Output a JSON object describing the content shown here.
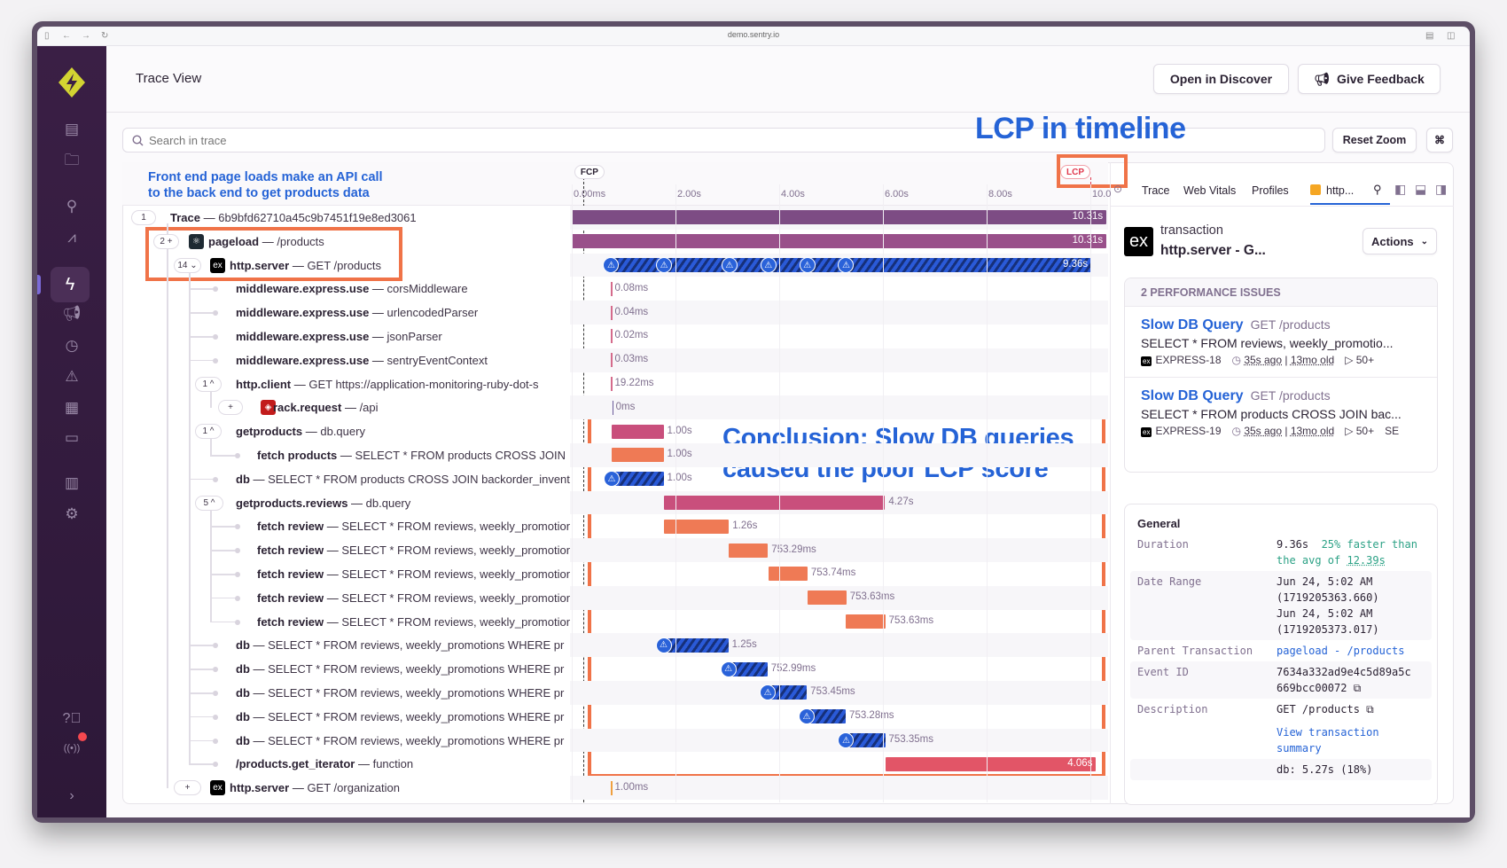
{
  "browser": {
    "url": "demo.sentry.io"
  },
  "sidebar": {
    "logo": "sentry-logo-icon",
    "items": [
      "issues-icon",
      "projects-icon",
      "explore-icon",
      "performance-chart-icon",
      "traces-icon",
      "feedback-icon",
      "releases-icon",
      "alerts-icon",
      "dashboards-icon",
      "crons-icon",
      "stats-icon",
      "settings-icon"
    ],
    "active_item": "traces-icon",
    "bottom": [
      "help-icon",
      "broadcast-icon",
      "collapse-icon"
    ]
  },
  "header": {
    "title": "Trace View",
    "open_discover": "Open in Discover",
    "give_feedback": "Give Feedback"
  },
  "search": {
    "placeholder": "Search in trace",
    "reset_zoom": "Reset Zoom",
    "shortcut": "⌘"
  },
  "annotations": {
    "lcp_title": "LCP in timeline",
    "tree_note_line1": "Front end page loads make an API call",
    "tree_note_line2": "to the back end to get products data",
    "conclusion_line1": "Conclusion: Slow DB queries",
    "conclusion_line2": "caused the poor LCP score",
    "highlight_color": "#f07348"
  },
  "timeline": {
    "fcp": {
      "label": "FCP",
      "time_s": 0.22
    },
    "lcp": {
      "label": "LCP",
      "time_s": 10.0
    },
    "ticks": [
      {
        "label": "0.00ms",
        "t": 0
      },
      {
        "label": "2.00s",
        "t": 2
      },
      {
        "label": "4.00s",
        "t": 4
      },
      {
        "label": "6.00s",
        "t": 6
      },
      {
        "label": "8.00s",
        "t": 8
      },
      {
        "label": "10.0",
        "t": 10
      }
    ],
    "issue_markers_s": [
      0.76,
      1.78,
      3.04,
      3.79,
      4.54,
      5.29
    ]
  },
  "rows": [
    {
      "count": "1",
      "name": "Trace",
      "desc": "6b9bfd62710a45c9b7451f19e8ed3061",
      "start": 0,
      "dur": 10.31,
      "label": "10.31s",
      "color": "#7d4c84",
      "style": "solid"
    },
    {
      "count": "2 +",
      "icon": "react",
      "name": "pageload",
      "desc": "/products",
      "start": 0,
      "dur": 10.31,
      "label": "10.31s",
      "color": "#99508a",
      "style": "solid"
    },
    {
      "count": "14 ⌄",
      "icon": "express",
      "name": "http.server",
      "desc": "GET /products",
      "start": 0.66,
      "dur": 9.36,
      "label": "9.36s",
      "style": "hatch",
      "markers": true
    },
    {
      "name": "middleware.express.use",
      "desc": "corsMiddleware",
      "start": 0.76,
      "dur": 0,
      "label": "0.08ms",
      "color": "#d56b8c",
      "style": "line"
    },
    {
      "name": "middleware.express.use",
      "desc": "urlencodedParser",
      "start": 0.76,
      "dur": 0,
      "label": "0.04ms",
      "color": "#d56b8c",
      "style": "line"
    },
    {
      "name": "middleware.express.use",
      "desc": "jsonParser",
      "start": 0.76,
      "dur": 0,
      "label": "0.02ms",
      "color": "#d56b8c",
      "style": "line"
    },
    {
      "name": "middleware.express.use",
      "desc": "sentryEventContext",
      "start": 0.76,
      "dur": 0,
      "label": "0.03ms",
      "color": "#d56b8c",
      "style": "line"
    },
    {
      "count": "1 ^",
      "name": "http.client",
      "desc": "GET https://application-monitoring-ruby-dot-s",
      "start": 0.76,
      "dur": 0,
      "label": "19.22ms",
      "color": "#d56b8c",
      "style": "line"
    },
    {
      "count": "+",
      "icon": "rails",
      "name": "rack.request",
      "desc": "/api",
      "start": 0.78,
      "dur": 0,
      "label": "0ms",
      "color": "#6a5a9a",
      "style": "line"
    },
    {
      "count": "1 ^",
      "name": "getproducts",
      "desc": "db.query",
      "start": 0.77,
      "dur": 1.0,
      "label": "1.00s",
      "color": "#c94f7c",
      "style": "solid"
    },
    {
      "name": "fetch products",
      "desc": "SELECT * FROM products CROSS JOIN",
      "start": 0.77,
      "dur": 1.0,
      "label": "1.00s",
      "color": "#ef7a55",
      "style": "solid"
    },
    {
      "name": "db",
      "desc": "SELECT * FROM products CROSS JOIN backorder_inventory",
      "start": 0.77,
      "dur": 1.0,
      "label": "1.00s",
      "style": "hatch",
      "warn": true
    },
    {
      "count": "5 ^",
      "name": "getproducts.reviews",
      "desc": "db.query",
      "start": 1.77,
      "dur": 4.27,
      "label": "4.27s",
      "color": "#c94f7c",
      "style": "solid"
    },
    {
      "name": "fetch review",
      "desc": "SELECT * FROM reviews, weekly_promotions",
      "start": 1.77,
      "dur": 1.26,
      "label": "1.26s",
      "color": "#ef7a55",
      "style": "solid"
    },
    {
      "name": "fetch review",
      "desc": "SELECT * FROM reviews, weekly_promotions",
      "start": 3.03,
      "dur": 0.753,
      "label": "753.29ms",
      "color": "#ef7a55",
      "style": "solid"
    },
    {
      "name": "fetch review",
      "desc": "SELECT * FROM reviews, weekly_promotions",
      "start": 3.79,
      "dur": 0.754,
      "label": "753.74ms",
      "color": "#ef7a55",
      "style": "solid"
    },
    {
      "name": "fetch review",
      "desc": "SELECT * FROM reviews, weekly_promotions",
      "start": 4.54,
      "dur": 0.754,
      "label": "753.63ms",
      "color": "#ef7a55",
      "style": "solid"
    },
    {
      "name": "fetch review",
      "desc": "SELECT * FROM reviews, weekly_promotions",
      "start": 5.29,
      "dur": 0.754,
      "label": "753.63ms",
      "color": "#ef7a55",
      "style": "solid"
    },
    {
      "name": "db",
      "desc": "SELECT * FROM reviews, weekly_promotions WHERE pr",
      "start": 1.77,
      "dur": 1.25,
      "label": "1.25s",
      "style": "hatch",
      "warn": true
    },
    {
      "name": "db",
      "desc": "SELECT * FROM reviews, weekly_promotions WHERE pr",
      "start": 3.02,
      "dur": 0.753,
      "label": "752.99ms",
      "style": "hatch",
      "warn": true
    },
    {
      "name": "db",
      "desc": "SELECT * FROM reviews, weekly_promotions WHERE pr",
      "start": 3.78,
      "dur": 0.753,
      "label": "753.45ms",
      "style": "hatch",
      "warn": true
    },
    {
      "name": "db",
      "desc": "SELECT * FROM reviews, weekly_promotions WHERE pr",
      "start": 4.53,
      "dur": 0.753,
      "label": "753.28ms",
      "style": "hatch",
      "warn": true
    },
    {
      "name": "db",
      "desc": "SELECT * FROM reviews, weekly_promotions WHERE pr",
      "start": 5.29,
      "dur": 0.753,
      "label": "753.35ms",
      "style": "hatch",
      "warn": true
    },
    {
      "name": "/products.get_iterator",
      "desc": "function",
      "start": 6.05,
      "dur": 4.06,
      "label": "4.06s",
      "color": "#e25567",
      "style": "solid"
    },
    {
      "count": "+",
      "icon": "express",
      "name": "http.server",
      "desc": "GET /organization",
      "start": 0.76,
      "dur": 0,
      "label": "1.00ms",
      "color": "#f0a040",
      "style": "line"
    }
  ],
  "panel": {
    "tabs": [
      "Trace",
      "Web Vitals",
      "Profiles"
    ],
    "active_tab": "http...",
    "active_tab_color": "#f5a623",
    "transaction": {
      "type": "transaction",
      "title": "http.server - G..."
    },
    "actions": "Actions",
    "issues": {
      "header": "2 PERFORMANCE ISSUES",
      "items": [
        {
          "title": "Slow DB Query",
          "route": "GET /products",
          "query": "SELECT * FROM reviews, weekly_promotio...",
          "project": "EXPRESS-18",
          "age": "35s ago",
          "first_seen": "13mo old",
          "events": "50+",
          "extra": ""
        },
        {
          "title": "Slow DB Query",
          "route": "GET /products",
          "query": "SELECT * FROM products CROSS JOIN bac...",
          "project": "EXPRESS-19",
          "age": "35s ago",
          "first_seen": "13mo old",
          "events": "50+",
          "extra": "SE"
        }
      ]
    },
    "general": {
      "title": "General",
      "duration_label": "Duration",
      "duration": "9.36s",
      "duration_compare": "25% faster than the avg of",
      "duration_avg": "12.39s",
      "date_range_label": "Date Range",
      "date_start": "Jun 24, 5:02 AM",
      "date_start_ts": "(1719205363.660)",
      "date_end": "Jun 24, 5:02 AM",
      "date_end_ts": "(1719205373.017)",
      "parent_label": "Parent Transaction",
      "parent": "pageload - /products",
      "event_id_label": "Event ID",
      "event_id_1": "7634a332ad9e4c5d89a5c",
      "event_id_2": "669bcc00072",
      "description_label": "Description",
      "description": "GET /products",
      "view_summary": "View transaction summary",
      "db_breakdown": "db: 5.27s (18%)"
    }
  }
}
